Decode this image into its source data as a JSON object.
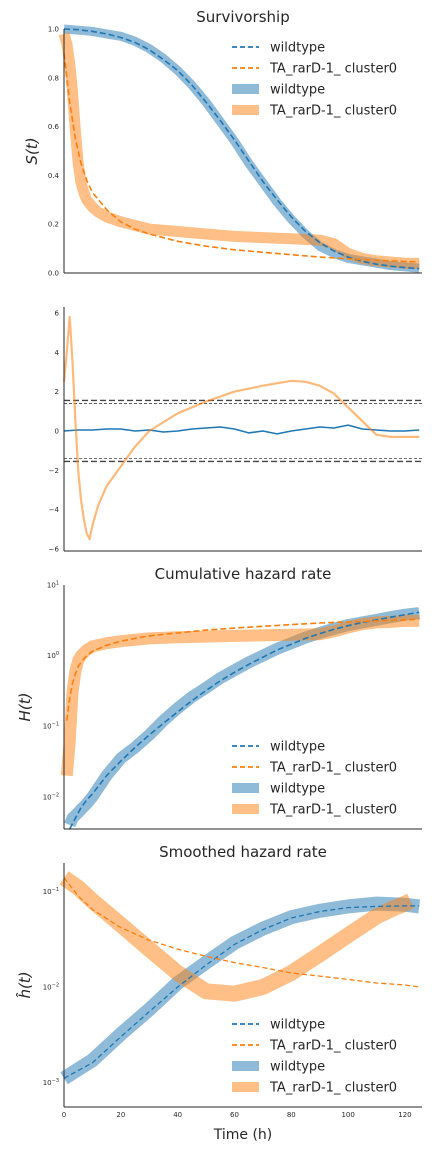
{
  "colors": {
    "wildtype": "#1f77b4",
    "mutant": "#ff7f0e",
    "ref": "#444444"
  },
  "chart_data": [
    {
      "type": "line",
      "title": "Survivorship",
      "ylabel": "S(t)",
      "xlim": [
        0,
        126
      ],
      "ylim": [
        0,
        1
      ],
      "yticks": [
        "0.0",
        "0.2",
        "0.4",
        "0.6",
        "0.8",
        "1.0"
      ],
      "legend": {
        "position": "top-right",
        "entries": [
          "wildtype",
          "TA_rarD-1_ cluster0",
          "wildtype",
          "TA_rarD-1_ cluster0"
        ]
      },
      "series": [
        {
          "name": "wildtype",
          "x": [
            0,
            5,
            10,
            15,
            20,
            25,
            30,
            35,
            40,
            45,
            50,
            55,
            60,
            65,
            70,
            75,
            80,
            85,
            90,
            95,
            100,
            105,
            110,
            115,
            120,
            125
          ],
          "y": [
            1.0,
            0.995,
            0.99,
            0.98,
            0.97,
            0.95,
            0.92,
            0.88,
            0.83,
            0.77,
            0.7,
            0.62,
            0.54,
            0.45,
            0.37,
            0.29,
            0.22,
            0.16,
            0.11,
            0.08,
            0.06,
            0.05,
            0.04,
            0.03,
            0.025,
            0.02
          ]
        },
        {
          "name": "TA_rarD-1_ cluster0",
          "x": [
            0,
            1,
            2,
            3,
            4,
            5,
            6,
            7,
            8,
            10,
            12,
            15,
            20,
            25,
            30,
            40,
            50,
            60,
            70,
            80,
            90,
            95,
            100,
            105,
            110,
            115,
            120,
            125
          ],
          "y": [
            0.98,
            0.94,
            0.86,
            0.74,
            0.58,
            0.45,
            0.37,
            0.33,
            0.3,
            0.27,
            0.25,
            0.23,
            0.21,
            0.195,
            0.18,
            0.17,
            0.16,
            0.15,
            0.145,
            0.14,
            0.135,
            0.12,
            0.08,
            0.06,
            0.05,
            0.045,
            0.04,
            0.04
          ]
        },
        {
          "name": "wildtype fit",
          "x": [
            0,
            5,
            10,
            15,
            20,
            25,
            30,
            35,
            40,
            45,
            50,
            55,
            60,
            65,
            70,
            75,
            80,
            85,
            90,
            95,
            100,
            105,
            110,
            115,
            120,
            125
          ],
          "y": [
            1.0,
            0.997,
            0.99,
            0.98,
            0.965,
            0.945,
            0.915,
            0.875,
            0.83,
            0.77,
            0.7,
            0.625,
            0.545,
            0.46,
            0.375,
            0.3,
            0.23,
            0.17,
            0.125,
            0.09,
            0.065,
            0.048,
            0.036,
            0.028,
            0.022,
            0.018
          ]
        },
        {
          "name": "TA_rarD-1_ cluster0 fit",
          "x": [
            0,
            2,
            4,
            6,
            8,
            10,
            15,
            20,
            25,
            30,
            40,
            50,
            60,
            70,
            80,
            90,
            100,
            110,
            120,
            125
          ],
          "y": [
            0.9,
            0.7,
            0.55,
            0.45,
            0.38,
            0.33,
            0.26,
            0.21,
            0.18,
            0.16,
            0.13,
            0.11,
            0.095,
            0.085,
            0.075,
            0.065,
            0.058,
            0.052,
            0.047,
            0.045
          ]
        }
      ]
    },
    {
      "type": "line",
      "title": "",
      "ylabel": "",
      "xlim": [
        0,
        126
      ],
      "ylim": [
        -6.1,
        6.3
      ],
      "yticks": [
        "6",
        "4",
        "2",
        "0",
        "−2",
        "−4",
        "−6"
      ],
      "reference_lines": [
        1.55,
        1.4,
        -1.4,
        -1.55
      ],
      "series": [
        {
          "name": "wildtype",
          "x": [
            0,
            5,
            10,
            15,
            20,
            25,
            30,
            35,
            40,
            45,
            50,
            55,
            60,
            65,
            70,
            75,
            80,
            85,
            90,
            95,
            100,
            105,
            110,
            115,
            120,
            125
          ],
          "y": [
            0.0,
            0.05,
            0.05,
            0.1,
            0.1,
            0.0,
            0.05,
            -0.05,
            0.0,
            0.1,
            0.15,
            0.2,
            0.1,
            -0.1,
            0.0,
            -0.15,
            0.0,
            0.1,
            0.2,
            0.15,
            0.3,
            0.1,
            0.05,
            0.0,
            0.0,
            0.05
          ]
        },
        {
          "name": "TA_rarD-1_ cluster0",
          "x": [
            0,
            1,
            2,
            3,
            4,
            5,
            6,
            7,
            8,
            9,
            10,
            12,
            15,
            20,
            25,
            30,
            40,
            50,
            60,
            70,
            80,
            85,
            90,
            95,
            100,
            105,
            110,
            115,
            120,
            125
          ],
          "y": [
            2.5,
            4.0,
            5.8,
            3.5,
            0.5,
            -2.0,
            -3.5,
            -4.5,
            -5.2,
            -5.5,
            -4.8,
            -3.8,
            -2.8,
            -1.8,
            -0.8,
            0.0,
            0.9,
            1.5,
            2.0,
            2.3,
            2.55,
            2.5,
            2.3,
            1.9,
            1.2,
            0.5,
            -0.2,
            -0.3,
            -0.3,
            -0.3
          ]
        }
      ]
    },
    {
      "type": "line",
      "title": "Cumulative hazard rate",
      "ylabel": "H(t)",
      "xlim": [
        0,
        126
      ],
      "ylim": [
        0.0035,
        10
      ],
      "yscale": "log",
      "legend": {
        "position": "bottom-right",
        "entries": [
          "wildtype",
          "TA_rarD-1_ cluster0",
          "wildtype",
          "TA_rarD-1_ cluster0"
        ]
      },
      "series": [
        {
          "name": "wildtype",
          "x": [
            2,
            3,
            5,
            8,
            10,
            15,
            20,
            25,
            30,
            35,
            40,
            45,
            50,
            55,
            60,
            65,
            70,
            75,
            80,
            85,
            90,
            95,
            100,
            105,
            110,
            115,
            120,
            125
          ],
          "y": [
            0.004,
            0.005,
            0.006,
            0.008,
            0.01,
            0.02,
            0.035,
            0.05,
            0.075,
            0.12,
            0.18,
            0.26,
            0.35,
            0.48,
            0.62,
            0.8,
            1.0,
            1.25,
            1.5,
            1.8,
            2.1,
            2.4,
            2.7,
            2.95,
            3.2,
            3.5,
            3.8,
            4.0
          ]
        },
        {
          "name": "TA_rarD-1_ cluster0",
          "x": [
            1,
            2,
            3,
            4,
            5,
            6,
            8,
            10,
            15,
            20,
            30,
            40,
            50,
            60,
            70,
            80,
            90,
            95,
            100,
            105,
            110,
            115,
            120,
            125
          ],
          "y": [
            0.02,
            0.06,
            0.3,
            0.6,
            0.85,
            1.0,
            1.2,
            1.35,
            1.5,
            1.6,
            1.75,
            1.82,
            1.86,
            1.9,
            1.94,
            1.98,
            2.0,
            2.2,
            2.5,
            2.8,
            2.95,
            3.0,
            3.1,
            3.1
          ]
        },
        {
          "name": "wildtype fit",
          "x": [
            2,
            4,
            6,
            8,
            10,
            15,
            20,
            25,
            30,
            35,
            40,
            45,
            50,
            55,
            60,
            65,
            70,
            75,
            80,
            85,
            90,
            95,
            100,
            105,
            110,
            115,
            120,
            125
          ],
          "y": [
            0.0035,
            0.005,
            0.007,
            0.009,
            0.011,
            0.02,
            0.032,
            0.05,
            0.075,
            0.11,
            0.16,
            0.23,
            0.32,
            0.44,
            0.58,
            0.75,
            0.95,
            1.2,
            1.45,
            1.75,
            2.05,
            2.35,
            2.65,
            2.95,
            3.2,
            3.5,
            3.8,
            4.1
          ]
        },
        {
          "name": "TA_rarD-1_ cluster0 fit",
          "x": [
            1,
            2,
            3,
            4,
            5,
            6,
            8,
            10,
            15,
            20,
            25,
            30,
            40,
            50,
            60,
            70,
            80,
            90,
            100,
            110,
            120,
            125
          ],
          "y": [
            0.12,
            0.25,
            0.4,
            0.55,
            0.7,
            0.8,
            1.0,
            1.15,
            1.4,
            1.6,
            1.75,
            1.9,
            2.1,
            2.3,
            2.45,
            2.6,
            2.75,
            2.9,
            3.0,
            3.1,
            3.2,
            3.3
          ]
        }
      ]
    },
    {
      "type": "line",
      "title": "Smoothed hazard rate",
      "ylabel": "ĥ(t)",
      "xlabel": "Time (h)",
      "xlim": [
        0,
        126
      ],
      "xticks": [
        0,
        20,
        40,
        60,
        80,
        100,
        120
      ],
      "ylim": [
        0.00055,
        0.2
      ],
      "yscale": "log",
      "legend": {
        "position": "bottom-right",
        "entries": [
          "wildtype",
          "TA_rarD-1_ cluster0",
          "wildtype",
          "TA_rarD-1_ cluster0"
        ]
      },
      "series": [
        {
          "name": "wildtype",
          "x": [
            0,
            10,
            20,
            30,
            40,
            50,
            60,
            70,
            80,
            90,
            100,
            110,
            120,
            125
          ],
          "y": [
            0.0011,
            0.0017,
            0.0032,
            0.0058,
            0.011,
            0.018,
            0.029,
            0.041,
            0.054,
            0.063,
            0.07,
            0.075,
            0.073,
            0.07
          ]
        },
        {
          "name": "TA_rarD-1_ cluster0",
          "x": [
            0,
            5,
            10,
            20,
            30,
            40,
            50,
            60,
            70,
            80,
            90,
            100,
            110,
            115,
            120,
            122
          ],
          "y": [
            0.14,
            0.11,
            0.08,
            0.045,
            0.025,
            0.014,
            0.009,
            0.0085,
            0.01,
            0.014,
            0.022,
            0.035,
            0.055,
            0.065,
            0.075,
            0.08
          ]
        },
        {
          "name": "wildtype fit",
          "x": [
            0,
            10,
            20,
            30,
            40,
            50,
            60,
            70,
            80,
            90,
            100,
            110,
            120,
            125
          ],
          "y": [
            0.0011,
            0.0016,
            0.003,
            0.0055,
            0.01,
            0.017,
            0.028,
            0.04,
            0.053,
            0.062,
            0.068,
            0.07,
            0.071,
            0.071
          ]
        },
        {
          "name": "TA_rarD-1_ cluster0 fit",
          "x": [
            0,
            5,
            10,
            20,
            30,
            40,
            50,
            60,
            70,
            80,
            90,
            100,
            110,
            120,
            125
          ],
          "y": [
            0.14,
            0.09,
            0.065,
            0.042,
            0.031,
            0.025,
            0.021,
            0.018,
            0.016,
            0.014,
            0.013,
            0.012,
            0.011,
            0.0105,
            0.01
          ]
        }
      ]
    }
  ]
}
